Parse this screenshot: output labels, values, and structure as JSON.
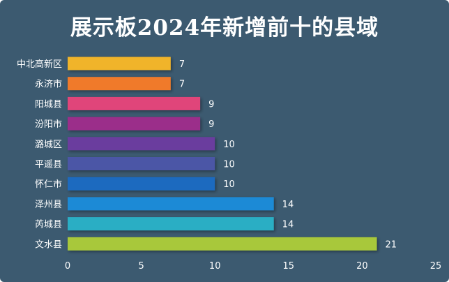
{
  "title": "展示板2024年新增前十的县域",
  "colors": {
    "background": "#3c5a70",
    "text": "#ffffff"
  },
  "chart_data": {
    "type": "bar",
    "orientation": "horizontal",
    "title": "展示板2024年新增前十的县域",
    "xlabel": "",
    "ylabel": "",
    "xlim": [
      0,
      25
    ],
    "xticks": [
      0,
      5,
      10,
      15,
      20,
      25
    ],
    "grid": false,
    "categories": [
      "中北高新区",
      "永济市",
      "阳城县",
      "汾阳市",
      "潞城区",
      "平遥县",
      "怀仁市",
      "泽州县",
      "芮城县",
      "文水县"
    ],
    "values": [
      7,
      7,
      9,
      9,
      10,
      10,
      10,
      14,
      14,
      21
    ],
    "bar_colors": [
      "#f0b429",
      "#f07a2c",
      "#e0457a",
      "#9b2e8a",
      "#6a3e9e",
      "#4b56a6",
      "#1f6bbf",
      "#1f8ad6",
      "#2aaec4",
      "#a8c83a"
    ],
    "data_labels": [
      "7",
      "7",
      "9",
      "9",
      "10",
      "10",
      "10",
      "14",
      "14",
      "21"
    ]
  }
}
